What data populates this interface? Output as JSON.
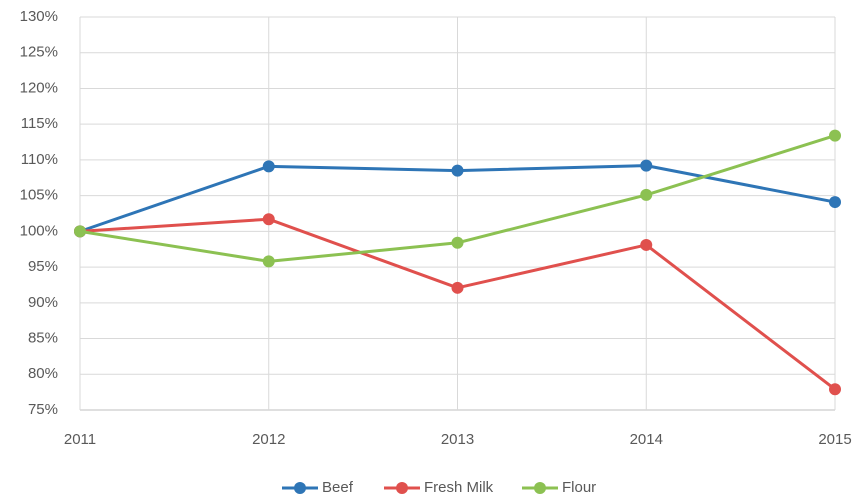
{
  "chart_data": {
    "type": "line",
    "x": [
      2011,
      2012,
      2013,
      2014,
      2015
    ],
    "xlim": [
      2011,
      2015
    ],
    "xticks": [
      2011,
      2012,
      2013,
      2014,
      2015
    ],
    "ylim": [
      75,
      130
    ],
    "yticks": [
      {
        "value": 75,
        "label": "75%"
      },
      {
        "value": 80,
        "label": "80%"
      },
      {
        "value": 85,
        "label": "85%"
      },
      {
        "value": 90,
        "label": "90%"
      },
      {
        "value": 95,
        "label": "95%"
      },
      {
        "value": 100,
        "label": "100%"
      },
      {
        "value": 105,
        "label": "105%"
      },
      {
        "value": 110,
        "label": "110%"
      },
      {
        "value": 115,
        "label": "115%"
      },
      {
        "value": 120,
        "label": "120%"
      },
      {
        "value": 125,
        "label": "125%"
      },
      {
        "value": 130,
        "label": "130%"
      }
    ],
    "grid": true,
    "legend": "bottom",
    "series": [
      {
        "name": "Beef",
        "color": "#2e75b6",
        "values": [
          100,
          109.1,
          108.5,
          109.2,
          104.1
        ]
      },
      {
        "name": "Fresh Milk",
        "color": "#e0504d",
        "values": [
          100,
          101.7,
          92.1,
          98.1,
          77.9
        ]
      },
      {
        "name": "Flour",
        "color": "#8cc152",
        "values": [
          100,
          95.8,
          98.4,
          105.1,
          113.4
        ]
      }
    ]
  }
}
